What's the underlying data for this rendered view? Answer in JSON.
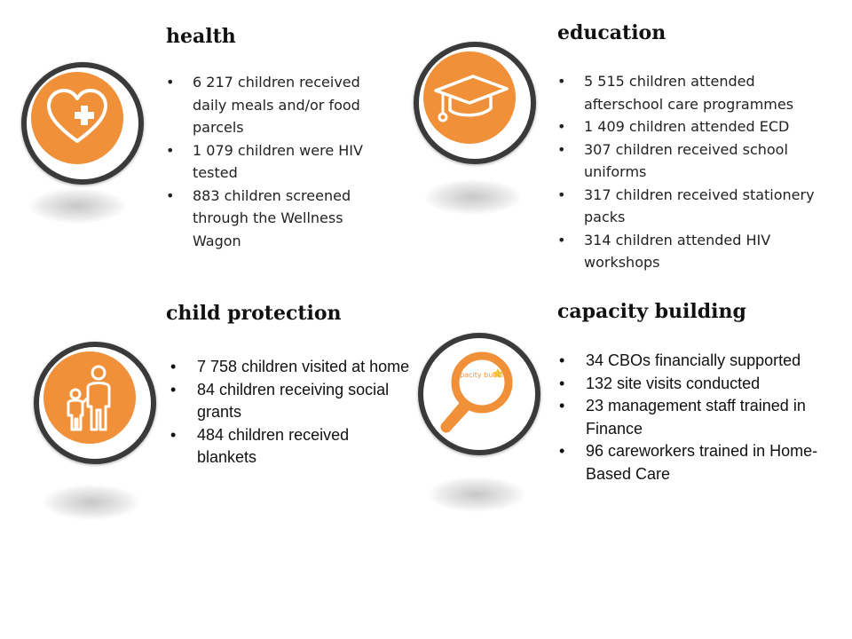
{
  "sections": {
    "health": {
      "title": "health",
      "icon": "heart-plus-icon",
      "items": [
        "6 217 children received daily meals and/or food parcels",
        "1 079 children were HIV tested",
        "883 children screened through the Wellness Wagon"
      ]
    },
    "education": {
      "title": "education",
      "icon": "graduation-cap-icon",
      "items": [
        "5 515 children attended afterschool care programmes",
        "1 409 children attended ECD",
        "307 children received school uniforms",
        "317 children received stationery packs",
        "314 children attended HIV workshops"
      ]
    },
    "child_protection": {
      "title": "child protection",
      "icon": "parent-child-icon",
      "items": [
        "7 758 children visited at home",
        "84 children receiving social grants",
        "484 children received blankets"
      ]
    },
    "capacity_building": {
      "title": "capacity building",
      "icon": "magnifying-glass-icon",
      "icon_text": "capacity building",
      "items": [
        "34 CBOs financially supported",
        "132 site visits conducted",
        "23 management  staff trained in Finance",
        "96 careworkers trained in Home-Based Care"
      ]
    }
  },
  "colors": {
    "accent": "#f0913a",
    "ring": "#3a3a3a",
    "text": "#222222"
  }
}
